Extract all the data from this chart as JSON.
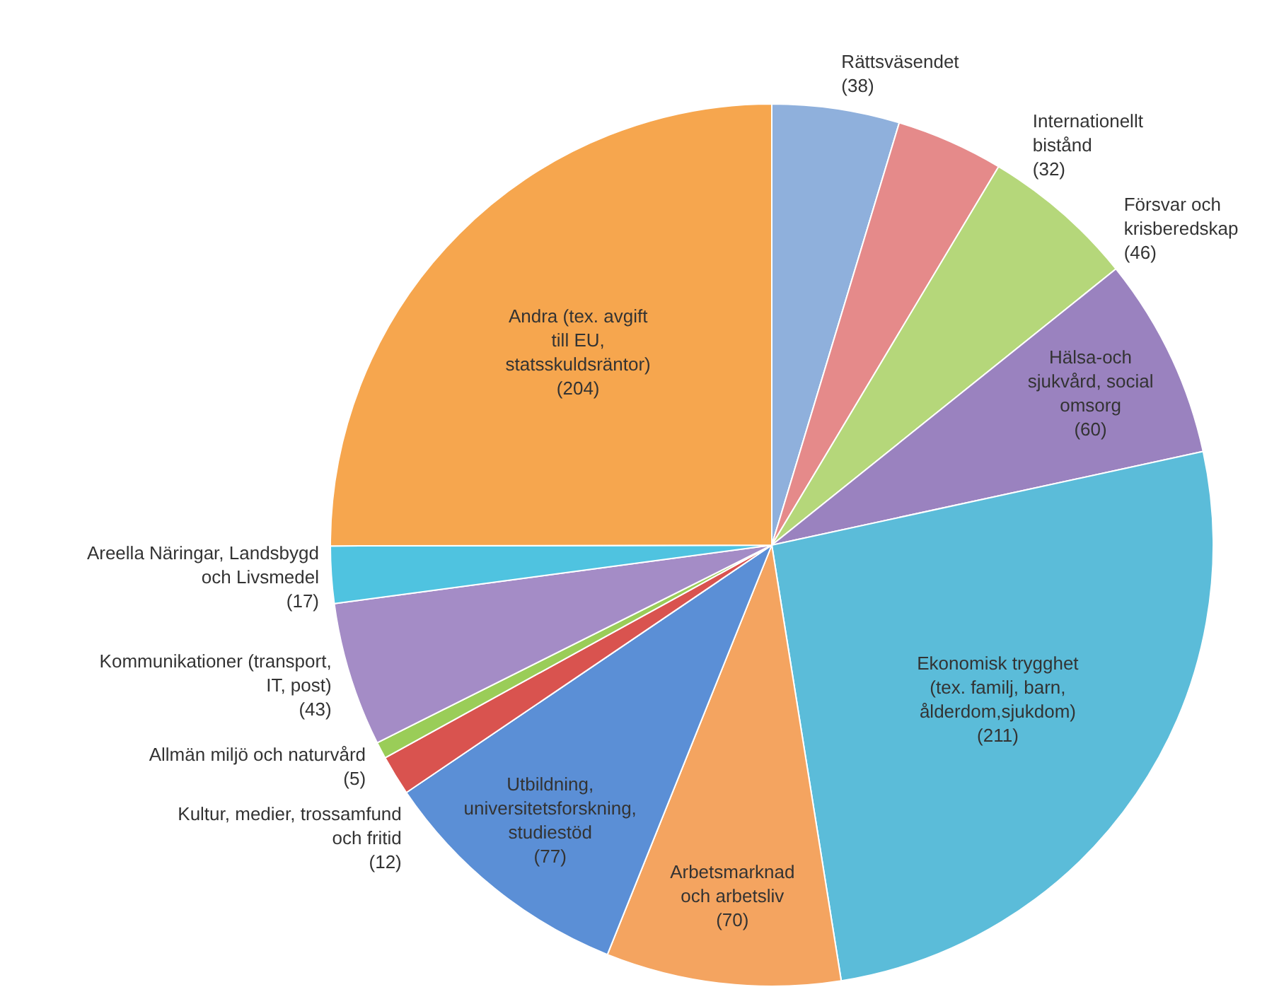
{
  "chart_data": {
    "type": "pie",
    "categories": [
      "Rättsväsendet",
      "Internationellt bistånd",
      "Försvar och krisberedskap",
      "Hälsa-och sjukvård, social omsorg",
      "Ekonomisk trygghet (tex. familj, barn, ålderdom,sjukdom)",
      "Arbetsmarknad och arbetsliv",
      "Utbildning, universitetsforskning, studiestöd",
      "Kultur, medier, trossamfund och fritid",
      "Allmän miljö och naturvård",
      "Kommunikationer (transport, IT, post)",
      "Areella Näringar, Landsbygd och Livsmedel",
      "Andra (tex. avgift till EU, statsskuldsräntor)"
    ],
    "values": [
      38,
      32,
      46,
      60,
      211,
      70,
      77,
      12,
      5,
      43,
      17,
      204
    ],
    "colors": [
      "#8fb0dc",
      "#e58a8a",
      "#b5d77a",
      "#9a82bf",
      "#5bbcd9",
      "#f4a460",
      "#5b8fd6",
      "#d9534f",
      "#9acd58",
      "#a48cc6",
      "#4fc3e0",
      "#f6a64e"
    ],
    "value_labels": [
      "(38)",
      "(32)",
      "(46)",
      "(60)",
      "(211)",
      "(70)",
      "(77)",
      "(12)",
      "(5)",
      "(43)",
      "(17)",
      "(204)"
    ]
  }
}
